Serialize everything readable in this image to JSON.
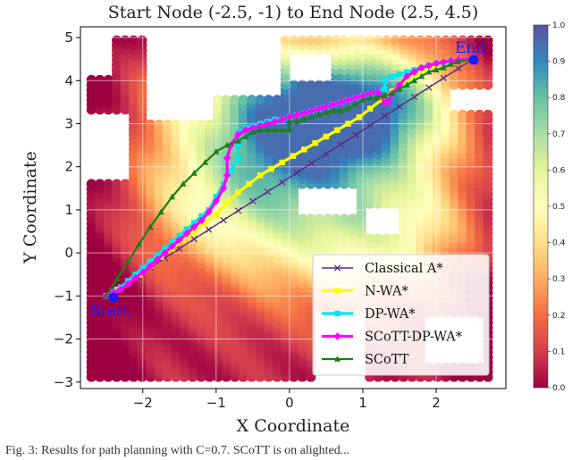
{
  "chart_data": {
    "type": "line",
    "title": "Start Node (-2.5, -1) to End Node (2.5, 4.5)",
    "xlabel": "X Coordinate",
    "ylabel": "Y Coordinate",
    "xlim": [
      -2.85,
      2.95
    ],
    "ylim": [
      -3.15,
      5.25
    ],
    "x_ticks": [
      -2,
      -1,
      0,
      1,
      2
    ],
    "x_tick_labels": [
      "−2",
      "−1",
      "0",
      "1",
      "2"
    ],
    "y_ticks": [
      -3,
      -2,
      -1,
      0,
      1,
      2,
      3,
      4,
      5
    ],
    "y_tick_labels": [
      "−3",
      "−2",
      "−1",
      "0",
      "1",
      "2",
      "3",
      "4",
      "5"
    ],
    "grid": true,
    "legend_position": "bottom-right",
    "colorbar": {
      "colormap": "Spectral",
      "range": [
        0.0,
        1.0
      ],
      "ticks": [
        0.0,
        0.1,
        0.2,
        0.3,
        0.4,
        0.5,
        0.6,
        0.7,
        0.8,
        0.9,
        1.0
      ],
      "tick_labels": [
        "0.0",
        "0.1",
        "0.2",
        "0.3",
        "0.4",
        "0.5",
        "0.6",
        "0.7",
        "0.8",
        "0.9",
        "1.0"
      ]
    },
    "annotations": [
      {
        "text": "Start",
        "x": -2.5,
        "y": -1.0
      },
      {
        "text": "End",
        "x": 2.5,
        "y": 4.5
      }
    ],
    "series": [
      {
        "name": "Classical A*",
        "color": "#5b2a86",
        "marker": "x",
        "x": [
          -2.5,
          -2.3,
          -2.1,
          -1.9,
          -1.7,
          -1.5,
          -1.3,
          -1.1,
          -0.9,
          -0.7,
          -0.5,
          -0.3,
          -0.1,
          0.1,
          0.3,
          0.5,
          0.7,
          0.9,
          1.1,
          1.3,
          1.5,
          1.7,
          1.9,
          2.1,
          2.3,
          2.5
        ],
        "y": [
          -1.0,
          -0.78,
          -0.56,
          -0.34,
          -0.12,
          0.1,
          0.32,
          0.54,
          0.76,
          0.98,
          1.2,
          1.42,
          1.64,
          1.86,
          2.08,
          2.3,
          2.52,
          2.74,
          2.96,
          3.18,
          3.4,
          3.62,
          3.84,
          4.06,
          4.28,
          4.5
        ]
      },
      {
        "name": "N-WA*",
        "color": "#ffff00",
        "marker": "s",
        "x": [
          -2.5,
          -2.35,
          -2.2,
          -2.05,
          -1.9,
          -1.75,
          -1.6,
          -1.45,
          -1.3,
          -1.15,
          -1.0,
          -0.85,
          -0.7,
          -0.55,
          -0.4,
          -0.25,
          -0.1,
          0.05,
          0.2,
          0.35,
          0.5,
          0.65,
          0.8,
          0.95,
          1.1,
          1.25,
          1.4,
          1.55,
          1.7,
          1.85,
          2.0,
          2.15,
          2.3,
          2.5
        ],
        "y": [
          -1.0,
          -0.85,
          -0.7,
          -0.5,
          -0.3,
          -0.1,
          0.1,
          0.3,
          0.5,
          0.7,
          0.9,
          1.15,
          1.4,
          1.6,
          1.8,
          1.95,
          2.1,
          2.25,
          2.4,
          2.55,
          2.7,
          2.85,
          3.0,
          3.15,
          3.35,
          3.55,
          3.75,
          3.95,
          4.1,
          4.25,
          4.35,
          4.42,
          4.47,
          4.5
        ]
      },
      {
        "name": "DP-WA*",
        "color": "#00e5ee",
        "marker": "s",
        "x": [
          -2.5,
          -2.4,
          -2.3,
          -2.2,
          -2.1,
          -2.0,
          -1.9,
          -1.8,
          -1.7,
          -1.6,
          -1.5,
          -1.4,
          -1.3,
          -1.2,
          -1.1,
          -1.0,
          -0.9,
          -0.8,
          -0.7,
          -0.7,
          -0.7,
          -0.6,
          -0.5,
          -0.4,
          -0.3,
          -0.2,
          -0.1,
          0.0,
          0.1,
          0.2,
          0.3,
          0.4,
          0.5,
          0.6,
          0.7,
          0.8,
          0.9,
          1.0,
          1.1,
          1.2,
          1.3,
          1.3,
          1.4,
          1.5,
          1.6,
          1.7,
          1.8,
          1.9,
          2.0,
          2.1,
          2.2,
          2.3,
          2.5
        ],
        "y": [
          -1.0,
          -0.9,
          -0.8,
          -0.65,
          -0.5,
          -0.35,
          -0.2,
          -0.05,
          0.1,
          0.25,
          0.4,
          0.55,
          0.7,
          0.85,
          1.0,
          1.3,
          1.6,
          1.9,
          2.2,
          2.5,
          2.8,
          2.9,
          2.95,
          3.0,
          3.05,
          3.1,
          3.1,
          3.15,
          3.2,
          3.25,
          3.3,
          3.35,
          3.4,
          3.45,
          3.5,
          3.55,
          3.6,
          3.65,
          3.7,
          3.75,
          3.8,
          4.0,
          4.1,
          4.15,
          4.2,
          4.25,
          4.3,
          4.35,
          4.4,
          4.42,
          4.45,
          4.47,
          4.5
        ]
      },
      {
        "name": "SCoTT-DP-WA*",
        "color": "#ff00ff",
        "marker": "D",
        "x": [
          -2.5,
          -2.4,
          -2.3,
          -2.2,
          -2.1,
          -2.0,
          -1.9,
          -1.8,
          -1.7,
          -1.6,
          -1.5,
          -1.4,
          -1.3,
          -1.2,
          -1.1,
          -1.0,
          -0.9,
          -0.85,
          -0.85,
          -0.8,
          -0.7,
          -0.6,
          -0.5,
          -0.4,
          -0.3,
          -0.2,
          -0.1,
          0.0,
          0.1,
          0.2,
          0.3,
          0.4,
          0.5,
          0.6,
          0.7,
          0.8,
          0.9,
          1.0,
          1.1,
          1.2,
          1.3,
          1.35,
          1.4,
          1.5,
          1.6,
          1.7,
          1.8,
          1.9,
          2.0,
          2.1,
          2.2,
          2.3,
          2.5
        ],
        "y": [
          -1.0,
          -0.92,
          -0.85,
          -0.72,
          -0.58,
          -0.45,
          -0.3,
          -0.15,
          0.0,
          0.15,
          0.3,
          0.45,
          0.6,
          0.75,
          0.95,
          1.2,
          1.5,
          1.8,
          2.2,
          2.5,
          2.75,
          2.85,
          2.9,
          2.95,
          3.0,
          3.05,
          3.1,
          3.15,
          3.2,
          3.25,
          3.3,
          3.35,
          3.4,
          3.45,
          3.5,
          3.55,
          3.6,
          3.65,
          3.7,
          3.75,
          3.5,
          3.5,
          3.7,
          3.9,
          4.1,
          4.2,
          4.3,
          4.35,
          4.4,
          4.43,
          4.46,
          4.48,
          4.5
        ]
      },
      {
        "name": "SCoTT",
        "color": "#1a7f1a",
        "marker": "^",
        "x": [
          -2.5,
          -2.35,
          -2.2,
          -2.05,
          -1.9,
          -1.75,
          -1.6,
          -1.45,
          -1.3,
          -1.15,
          -1.0,
          -0.85,
          -0.7,
          -0.6,
          -0.5,
          -0.4,
          -0.3,
          -0.2,
          -0.1,
          0.0,
          0.0,
          0.1,
          0.2,
          0.3,
          0.4,
          0.5,
          0.6,
          0.7,
          0.8,
          0.9,
          1.0,
          1.1,
          1.2,
          1.3,
          1.4,
          1.5,
          1.6,
          1.7,
          1.8,
          1.9,
          2.0,
          2.1,
          2.2,
          2.3,
          2.5
        ],
        "y": [
          -1.0,
          -0.6,
          -0.2,
          0.2,
          0.6,
          0.95,
          1.3,
          1.6,
          1.85,
          2.1,
          2.35,
          2.5,
          2.6,
          2.7,
          2.8,
          2.85,
          2.85,
          2.85,
          2.85,
          2.85,
          3.05,
          3.05,
          3.1,
          3.15,
          3.2,
          3.25,
          3.3,
          3.3,
          3.35,
          3.45,
          3.55,
          3.6,
          3.6,
          3.65,
          3.7,
          3.8,
          3.9,
          4.0,
          4.1,
          4.2,
          4.25,
          4.3,
          4.38,
          4.44,
          4.5
        ]
      }
    ]
  },
  "caption": "Fig. 3: Results for path planning with C=0.7. SCoTT is on alighted..."
}
